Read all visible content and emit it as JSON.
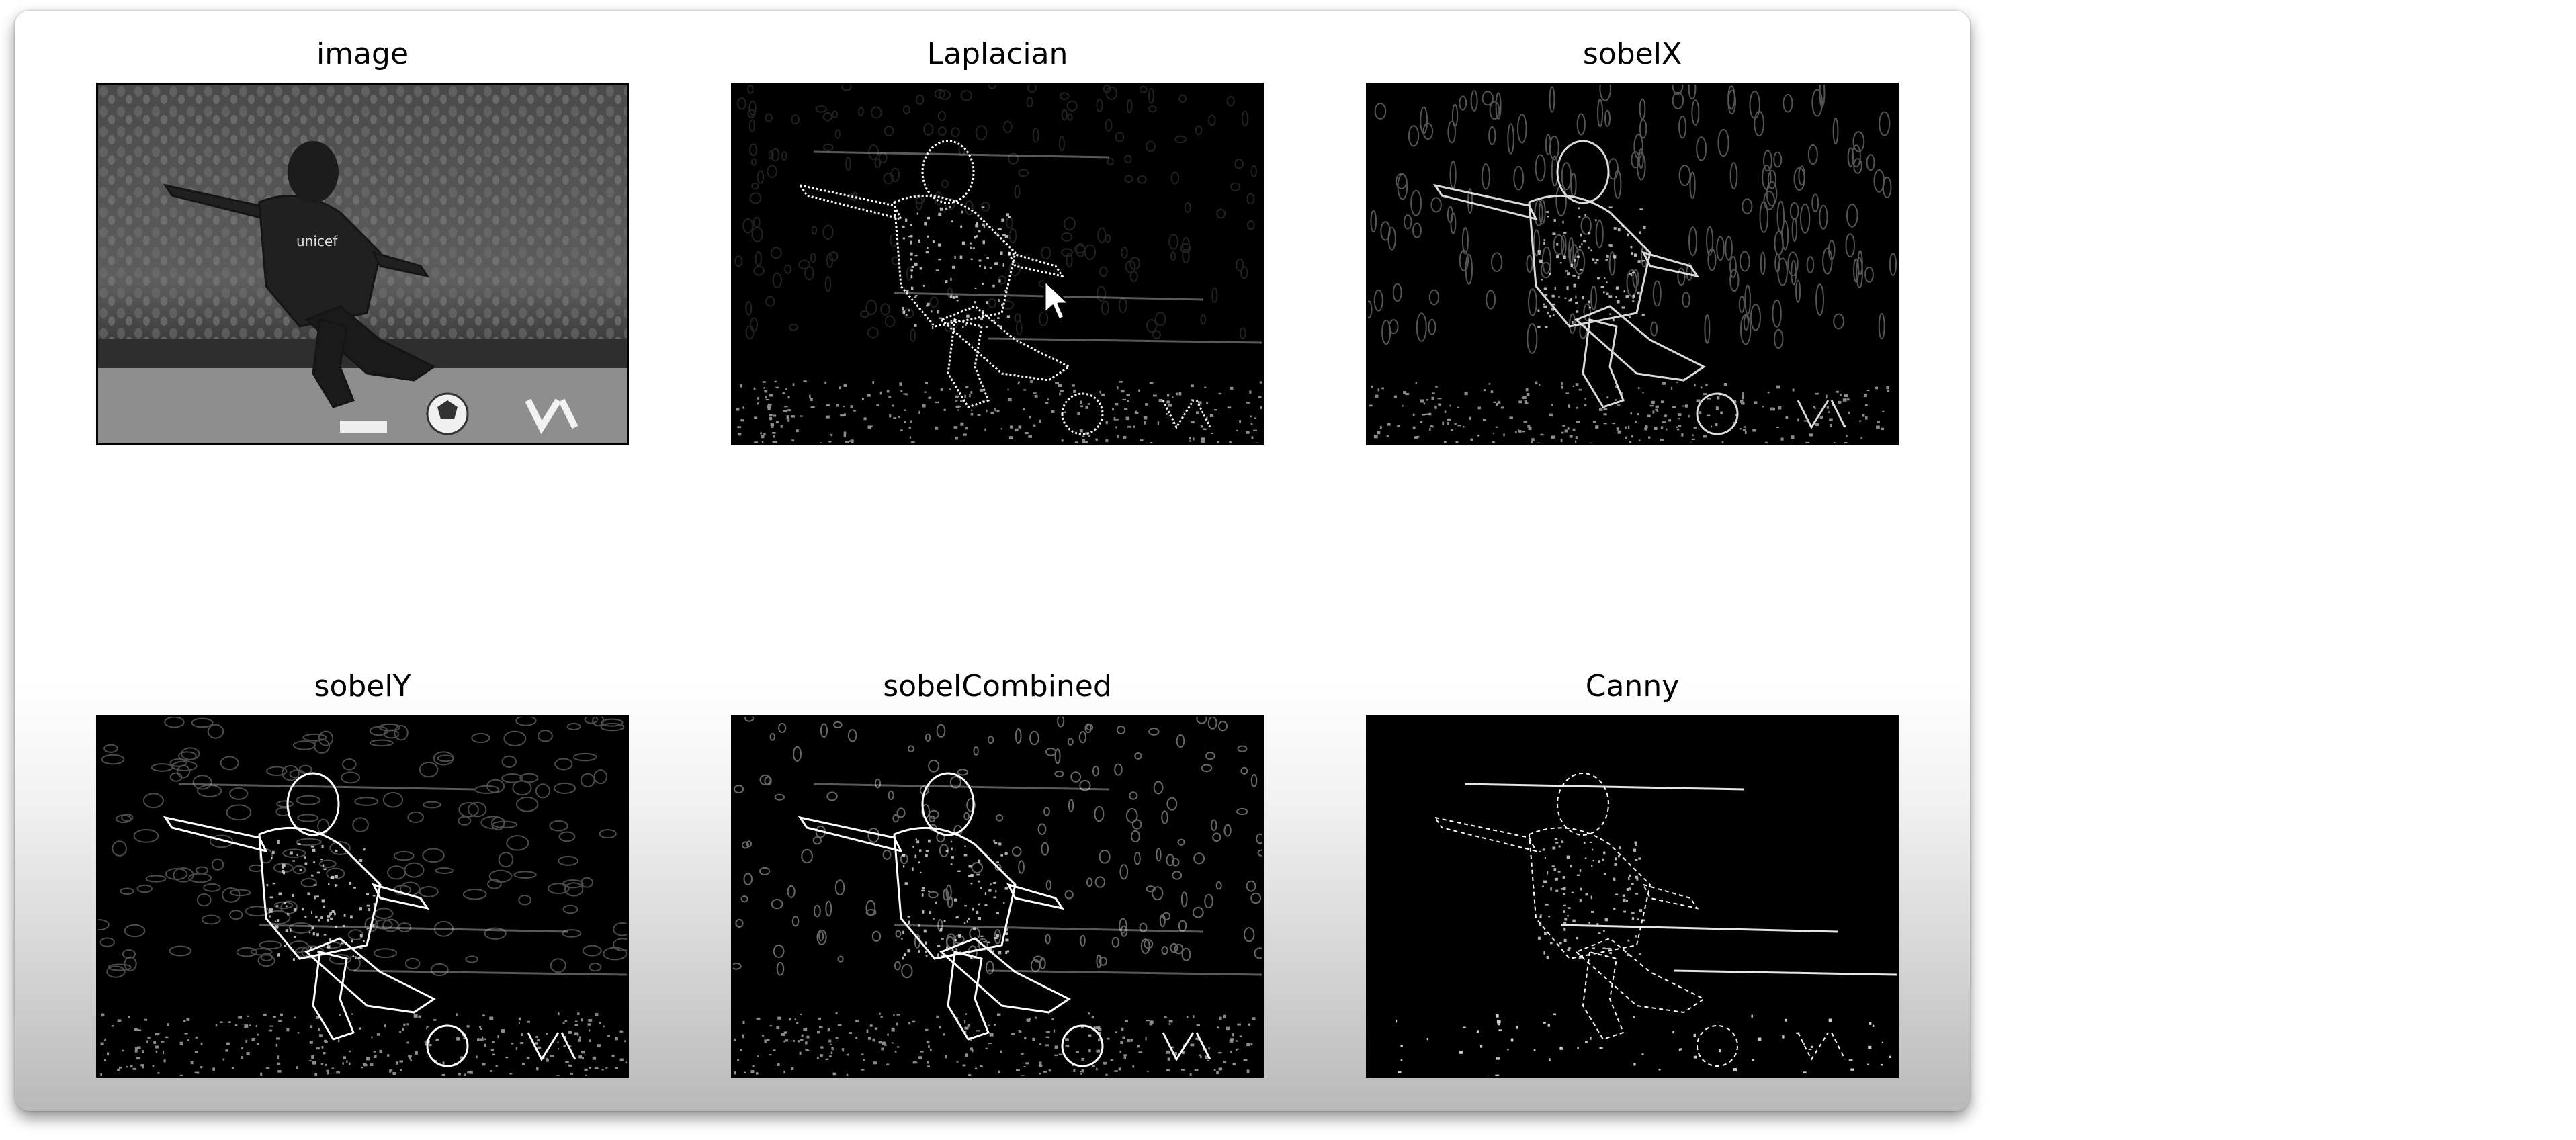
{
  "figure": {
    "panels": [
      {
        "title": "image",
        "kind": "grayscale"
      },
      {
        "title": "Laplacian",
        "kind": "laplacian"
      },
      {
        "title": "sobelX",
        "kind": "sobelx"
      },
      {
        "title": "sobelY",
        "kind": "sobely"
      },
      {
        "title": "sobelCombined",
        "kind": "combined"
      },
      {
        "title": "Canny",
        "kind": "canny"
      }
    ],
    "colors": {
      "figure_bg": "#ffffff",
      "axes_frame": "#000000",
      "edge_stroke": "#ffffff"
    },
    "cursor_icon": "mouse-pointer-icon",
    "jersey_text": "unicef"
  }
}
